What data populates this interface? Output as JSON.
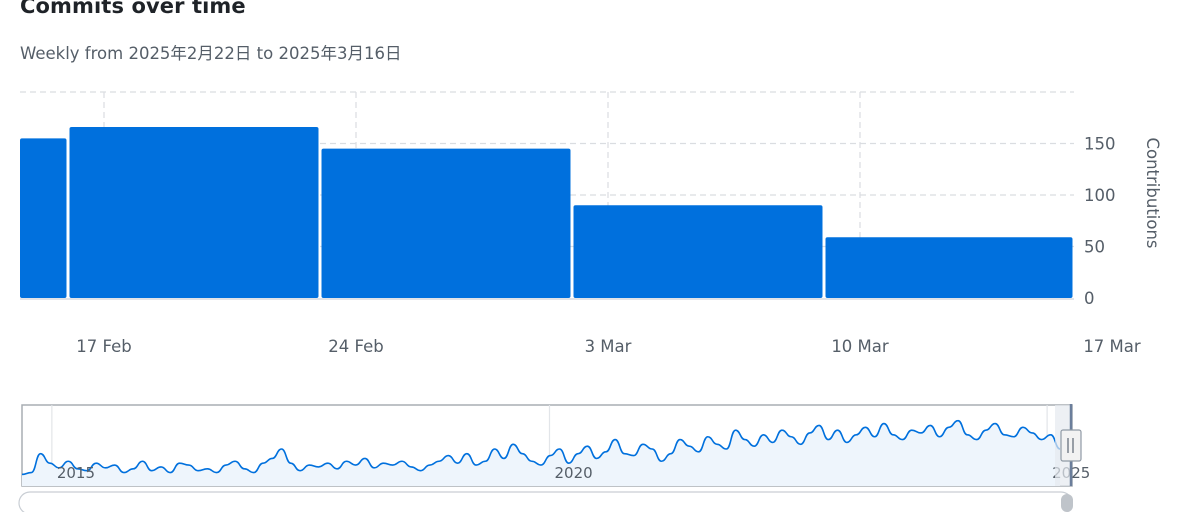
{
  "header": {
    "title": "Commits over time",
    "subtitle": "Weekly from 2025年2月22日 to 2025年3月16日"
  },
  "colors": {
    "bar": "#0070dd",
    "grid": "#dadde1",
    "text": "#555e68",
    "navigator_line": "#0070dd",
    "navigator_fill": "#eef5fc"
  },
  "chart_data": {
    "type": "bar",
    "title": "Commits over time",
    "subtitle": "Weekly from 2025年2月22日 to 2025年3月16日",
    "x_ticks": [
      "17 Feb",
      "24 Feb",
      "3 Mar",
      "10 Mar",
      "17 Mar"
    ],
    "bars": [
      {
        "start": "2025-02-14",
        "end": "2025-02-16",
        "value": 155
      },
      {
        "start": "2025-02-16",
        "end": "2025-02-23",
        "value": 166
      },
      {
        "start": "2025-02-23",
        "end": "2025-03-02",
        "value": 145
      },
      {
        "start": "2025-03-02",
        "end": "2025-03-09",
        "value": 90
      },
      {
        "start": "2025-03-09",
        "end": "2025-03-16",
        "value": 59
      }
    ],
    "ylabel": "Contributions",
    "y_ticks": [
      0,
      50,
      100,
      150
    ],
    "ylim": [
      0,
      200
    ],
    "y_axis_side": "right",
    "grid": true,
    "navigator": {
      "type": "area",
      "x_labels": [
        "2015",
        "2020",
        "2025"
      ],
      "x_range": [
        2014.7,
        2025.25
      ],
      "values": [
        8,
        10,
        30,
        20,
        15,
        22,
        14,
        12,
        20,
        15,
        18,
        10,
        14,
        22,
        12,
        16,
        10,
        20,
        18,
        12,
        14,
        10,
        18,
        22,
        14,
        10,
        20,
        25,
        35,
        20,
        12,
        18,
        16,
        20,
        14,
        22,
        18,
        25,
        15,
        20,
        18,
        22,
        16,
        12,
        18,
        22,
        28,
        20,
        30,
        18,
        22,
        35,
        25,
        40,
        30,
        22,
        18,
        28,
        35,
        20,
        30,
        38,
        25,
        32,
        45,
        30,
        28,
        40,
        35,
        22,
        30,
        45,
        38,
        32,
        48,
        40,
        35,
        55,
        45,
        38,
        50,
        42,
        55,
        48,
        40,
        52,
        60,
        45,
        55,
        42,
        50,
        58,
        48,
        62,
        50,
        45,
        55,
        52,
        60,
        48,
        58,
        65,
        50,
        45,
        55,
        62,
        50,
        48,
        58,
        52,
        45,
        50,
        35
      ]
    }
  }
}
